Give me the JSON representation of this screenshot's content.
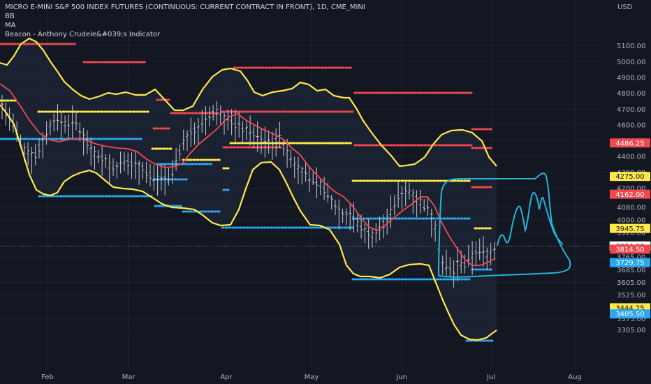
{
  "legend": {
    "title": "MICRO E-MINI S&P 500 INDEX FUTURES (CONTINUOUS: CURRENT CONTRACT IN FRONT), 1D, CME_MINI",
    "line2": "BB",
    "line3": "MA",
    "line4": "Beacon - Anthony Crudele&#039;s Indicator"
  },
  "currency": "USD",
  "colors": {
    "background": "#131722",
    "grid": "#1f2330",
    "axis_text": "#b2b5be",
    "band_upper_lower": "#ffe84a",
    "basis": "#f2474f",
    "candles": "#c7c9d1",
    "fill": "#1c2433",
    "red_dots": "#f2474f",
    "yellow_dots": "#ffe84a",
    "blue_dots": "#2aa7f0",
    "drawing": "#24b5d8",
    "last_price_label_bg": "#ffffff"
  },
  "chart_data": {
    "type": "candlestick",
    "x_ticks": [
      "Feb",
      "Mar",
      "Apr",
      "May",
      "Jun",
      "Jul",
      "Aug"
    ],
    "y_ticks": [
      3305.0,
      3375.0,
      3525.0,
      3605.0,
      3685.0,
      3765.0,
      3920.0,
      4000.0,
      4080.0,
      4200.0,
      4300.0,
      4400.0,
      4500.0,
      4600.0,
      4700.0,
      4800.0,
      4900.0,
      5000.0,
      5100.0
    ],
    "ylim": [
      3290,
      5210
    ],
    "price_labels": [
      {
        "text": "4486.25",
        "value": 4486.25,
        "color": "#f2474f"
      },
      {
        "text": "4275.00",
        "value": 4275.0,
        "color": "#ffe84a"
      },
      {
        "text": "4162.00",
        "value": 4162.0,
        "color": "#f2474f"
      },
      {
        "text": "3945.75",
        "value": 3945.75,
        "color": "#ffe84a"
      },
      {
        "text": "3834.00",
        "value": 3834.0,
        "color": "#ffffff"
      },
      {
        "text": "3814.50",
        "value": 3814.5,
        "color": "#f2474f"
      },
      {
        "text": "3729.75",
        "value": 3729.75,
        "color": "#2aa7f0"
      },
      {
        "text": "3444.25",
        "value": 3444.25,
        "color": "#ffe84a"
      },
      {
        "text": "3405.50",
        "value": 3405.5,
        "color": "#2aa7f0"
      }
    ],
    "last_price": 3834.0
  }
}
